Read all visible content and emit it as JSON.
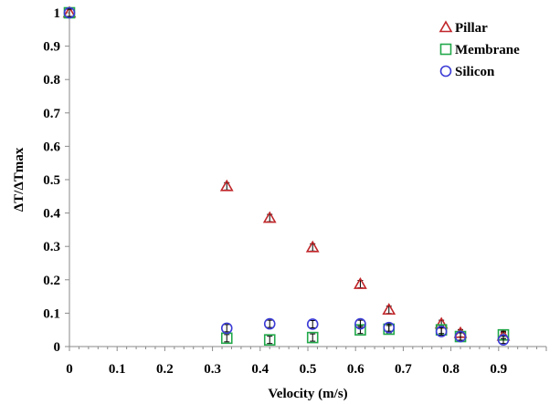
{
  "chart_data": {
    "type": "scatter",
    "xlabel": "Velocity (m/s)",
    "ylabel": "ΔT/ΔTmax",
    "xlim": [
      0,
      1.0
    ],
    "ylim": [
      0,
      1
    ],
    "xticks": [
      "0",
      "0.1",
      "0.2",
      "0.3",
      "0.4",
      "0.5",
      "0.6",
      "0.7",
      "0.8",
      "0.9"
    ],
    "xtick_values": [
      0,
      0.1,
      0.2,
      0.3,
      0.4,
      0.5,
      0.6,
      0.7,
      0.8,
      0.9
    ],
    "yticks": [
      "0",
      "0.1",
      "0.2",
      "0.3",
      "0.4",
      "0.5",
      "0.6",
      "0.7",
      "0.8",
      "0.9",
      "1"
    ],
    "ytick_values": [
      0,
      0.1,
      0.2,
      0.3,
      0.4,
      0.5,
      0.6,
      0.7,
      0.8,
      0.9,
      1
    ],
    "grid": false,
    "legend_position": "top-right",
    "series": [
      {
        "name": "Pillar",
        "marker": "triangle",
        "color": "#c0262a",
        "points": [
          [
            0,
            1.0
          ],
          [
            0.33,
            0.48
          ],
          [
            0.42,
            0.385
          ],
          [
            0.51,
            0.297
          ],
          [
            0.61,
            0.187
          ],
          [
            0.67,
            0.11
          ],
          [
            0.78,
            0.068
          ],
          [
            0.82,
            0.04
          ],
          [
            0.91,
            0.032
          ]
        ]
      },
      {
        "name": "Membrane",
        "marker": "square",
        "color": "#22a84a",
        "points": [
          [
            0,
            1.0
          ],
          [
            0.33,
            0.025
          ],
          [
            0.42,
            0.02
          ],
          [
            0.51,
            0.027
          ],
          [
            0.61,
            0.05
          ],
          [
            0.67,
            0.052
          ],
          [
            0.78,
            0.05
          ],
          [
            0.82,
            0.03
          ],
          [
            0.91,
            0.035
          ]
        ]
      },
      {
        "name": "Silicon",
        "marker": "circle",
        "color": "#3b3bd6",
        "points": [
          [
            0,
            1.0
          ],
          [
            0.33,
            0.055
          ],
          [
            0.42,
            0.068
          ],
          [
            0.51,
            0.067
          ],
          [
            0.61,
            0.068
          ],
          [
            0.67,
            0.057
          ],
          [
            0.78,
            0.045
          ],
          [
            0.82,
            0.03
          ],
          [
            0.91,
            0.02
          ]
        ]
      }
    ]
  }
}
